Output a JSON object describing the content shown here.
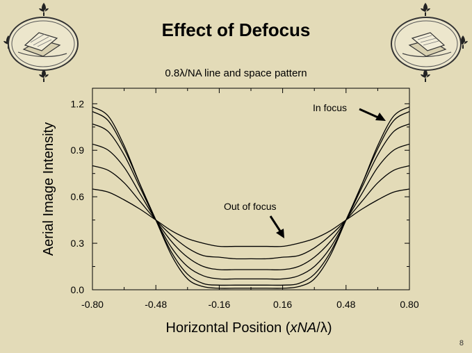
{
  "slide": {
    "title": "Effect of Defocus",
    "page_number": "8"
  },
  "decorations": {
    "left_emblem": "book-emblem-icon",
    "right_emblem": "book-emblem-icon",
    "corner_ornaments": "fleur-ornament-icon"
  },
  "chart_data": {
    "type": "line",
    "title": "0.8λ/NA line and space pattern",
    "xlabel_parts": [
      "Horizontal Position (",
      "xNA",
      "/",
      "λ",
      ")"
    ],
    "ylabel": "Aerial Image Intensity",
    "xlim": [
      -0.8,
      0.8
    ],
    "ylim": [
      0.0,
      1.3
    ],
    "xticks": [
      -0.8,
      -0.48,
      -0.16,
      0.16,
      0.48,
      0.8
    ],
    "xtick_labels": [
      "-0.80",
      "-0.48",
      "-0.16",
      "0.16",
      "0.48",
      "0.80"
    ],
    "yticks": [
      0.0,
      0.3,
      0.6,
      0.9,
      1.2
    ],
    "ytick_labels": [
      "0.0",
      "0.3",
      "0.6",
      "0.9",
      "1.2"
    ],
    "annotations": [
      {
        "text": "In focus",
        "points_to_x": 0.72,
        "points_to_y": 1.08
      },
      {
        "text": "Out of focus",
        "points_to_x": 0.16,
        "points_to_y": 0.3
      }
    ],
    "x": [
      -0.8,
      -0.72,
      -0.64,
      -0.56,
      -0.48,
      -0.4,
      -0.32,
      -0.24,
      -0.16,
      -0.08,
      0.0,
      0.08,
      0.16,
      0.24,
      0.32,
      0.4,
      0.48,
      0.56,
      0.64,
      0.72,
      0.8
    ],
    "series": [
      {
        "values": [
          1.18,
          1.12,
          0.93,
          0.68,
          0.45,
          0.22,
          0.07,
          0.02,
          0.01,
          0.01,
          0.01,
          0.01,
          0.01,
          0.02,
          0.07,
          0.22,
          0.45,
          0.68,
          0.93,
          1.12,
          1.18
        ]
      },
      {
        "values": [
          1.15,
          1.09,
          0.91,
          0.68,
          0.45,
          0.24,
          0.1,
          0.04,
          0.03,
          0.03,
          0.03,
          0.03,
          0.03,
          0.04,
          0.1,
          0.24,
          0.45,
          0.68,
          0.91,
          1.09,
          1.15
        ]
      },
      {
        "values": [
          1.07,
          1.02,
          0.87,
          0.66,
          0.45,
          0.27,
          0.15,
          0.09,
          0.07,
          0.07,
          0.07,
          0.07,
          0.07,
          0.09,
          0.15,
          0.27,
          0.45,
          0.66,
          0.87,
          1.02,
          1.07
        ]
      },
      {
        "values": [
          0.94,
          0.9,
          0.79,
          0.62,
          0.45,
          0.31,
          0.21,
          0.15,
          0.13,
          0.13,
          0.13,
          0.13,
          0.13,
          0.15,
          0.21,
          0.31,
          0.45,
          0.62,
          0.79,
          0.9,
          0.94
        ]
      },
      {
        "values": [
          0.8,
          0.77,
          0.69,
          0.57,
          0.45,
          0.35,
          0.27,
          0.22,
          0.21,
          0.2,
          0.2,
          0.2,
          0.21,
          0.22,
          0.27,
          0.35,
          0.45,
          0.57,
          0.69,
          0.77,
          0.8
        ]
      },
      {
        "values": [
          0.65,
          0.63,
          0.58,
          0.52,
          0.45,
          0.38,
          0.33,
          0.3,
          0.28,
          0.28,
          0.28,
          0.28,
          0.28,
          0.3,
          0.33,
          0.38,
          0.45,
          0.52,
          0.58,
          0.63,
          0.65
        ]
      }
    ]
  }
}
